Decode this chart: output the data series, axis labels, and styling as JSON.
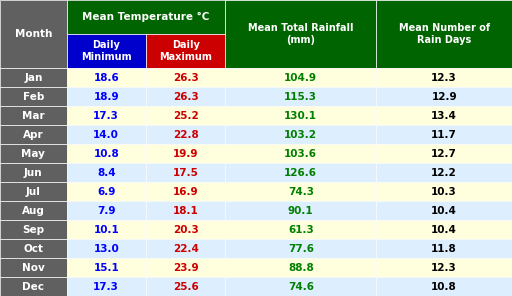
{
  "months": [
    "Jan",
    "Feb",
    "Mar",
    "Apr",
    "May",
    "Jun",
    "Jul",
    "Aug",
    "Sep",
    "Oct",
    "Nov",
    "Dec"
  ],
  "daily_min": [
    18.6,
    18.9,
    17.3,
    14.0,
    10.8,
    8.4,
    6.9,
    7.9,
    10.1,
    13.0,
    15.1,
    17.3
  ],
  "daily_max": [
    26.3,
    26.3,
    25.2,
    22.8,
    19.9,
    17.5,
    16.9,
    18.1,
    20.3,
    22.4,
    23.9,
    25.6
  ],
  "rainfall": [
    104.9,
    115.3,
    130.1,
    103.2,
    103.6,
    126.6,
    74.3,
    90.1,
    61.3,
    77.6,
    88.8,
    74.6
  ],
  "rain_days": [
    12.3,
    12.9,
    13.4,
    11.7,
    12.7,
    12.2,
    10.3,
    10.4,
    10.4,
    11.8,
    12.3,
    10.8
  ],
  "bg_dark_gray": "#606060",
  "bg_green": "#006400",
  "bg_blue": "#0000CC",
  "bg_red": "#CC0000",
  "row_odd": "#FFFFDD",
  "row_even": "#DDEEFF",
  "text_blue": "#0000FF",
  "text_red": "#CC0000",
  "text_green": "#008000",
  "text_black": "#000000",
  "text_white": "#FFFFFF",
  "header_temp_text": "Mean Temperature °C",
  "header_min_text": "Daily\nMinimum",
  "header_max_text": "Daily\nMaximum",
  "header_rain_text": "Mean Total Rainfall\n(mm)",
  "header_days_text": "Mean Number of\nRain Days"
}
